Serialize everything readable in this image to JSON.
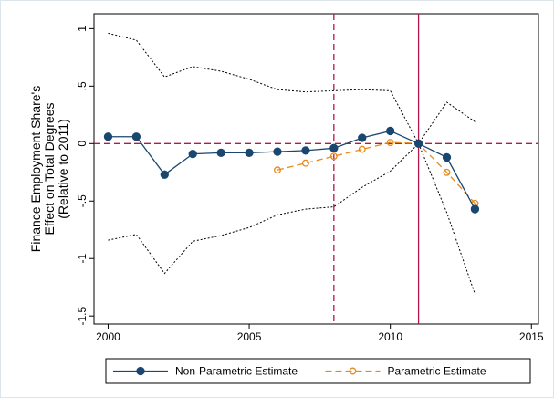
{
  "chart_data": {
    "type": "line",
    "y_axis_title": [
      "Finance Employment Share's",
      "Effect on Total Degrees",
      "(Relative to 2011)"
    ],
    "x": [
      2000,
      2001,
      2002,
      2003,
      2004,
      2005,
      2006,
      2007,
      2008,
      2009,
      2010,
      2011,
      2012,
      2013
    ],
    "series": [
      {
        "name": "Non-Parametric Estimate",
        "color": "#1a476f",
        "style": "solid",
        "marker": "filled",
        "values": [
          0.06,
          0.06,
          -0.27,
          -0.09,
          -0.08,
          -0.08,
          -0.07,
          -0.06,
          -0.04,
          0.05,
          0.11,
          0,
          -0.12,
          -0.57
        ]
      },
      {
        "name": "Parametric Estimate",
        "color": "#e8891a",
        "style": "dashed",
        "marker": "hollow",
        "values": [
          null,
          null,
          null,
          null,
          null,
          null,
          -0.23,
          -0.17,
          -0.11,
          -0.05,
          0.01,
          0,
          -0.25,
          -0.52
        ]
      },
      {
        "color": "#000000",
        "style": "dotted",
        "marker": "none",
        "values": [
          0.96,
          0.9,
          0.58,
          0.67,
          0.63,
          0.56,
          0.47,
          0.45,
          0.46,
          0.47,
          0.46,
          0,
          0.36,
          0.19
        ]
      },
      {
        "color": "#000000",
        "style": "dotted",
        "marker": "none",
        "values": [
          -0.84,
          -0.79,
          -1.13,
          -0.85,
          -0.8,
          -0.73,
          -0.62,
          -0.57,
          -0.55,
          -0.38,
          -0.24,
          0,
          -0.6,
          -1.31
        ]
      }
    ],
    "reference_lines": {
      "color": "#b5174a",
      "x_dashed": 2008,
      "x_solid": 2011,
      "y_dashed": 0
    },
    "xlim": [
      1999.5,
      2015.25
    ],
    "xticks": [
      2000,
      2005,
      2010,
      2015
    ],
    "ylim": [
      -1.57,
      1.13
    ],
    "yticks": [
      {
        "value": -1.5,
        "label": "-1.5"
      },
      -1,
      {
        "value": -0.5,
        "label": "-.5"
      },
      0,
      {
        "value": 0.5,
        "label": ".5"
      },
      1
    ],
    "legend": "bottom"
  }
}
